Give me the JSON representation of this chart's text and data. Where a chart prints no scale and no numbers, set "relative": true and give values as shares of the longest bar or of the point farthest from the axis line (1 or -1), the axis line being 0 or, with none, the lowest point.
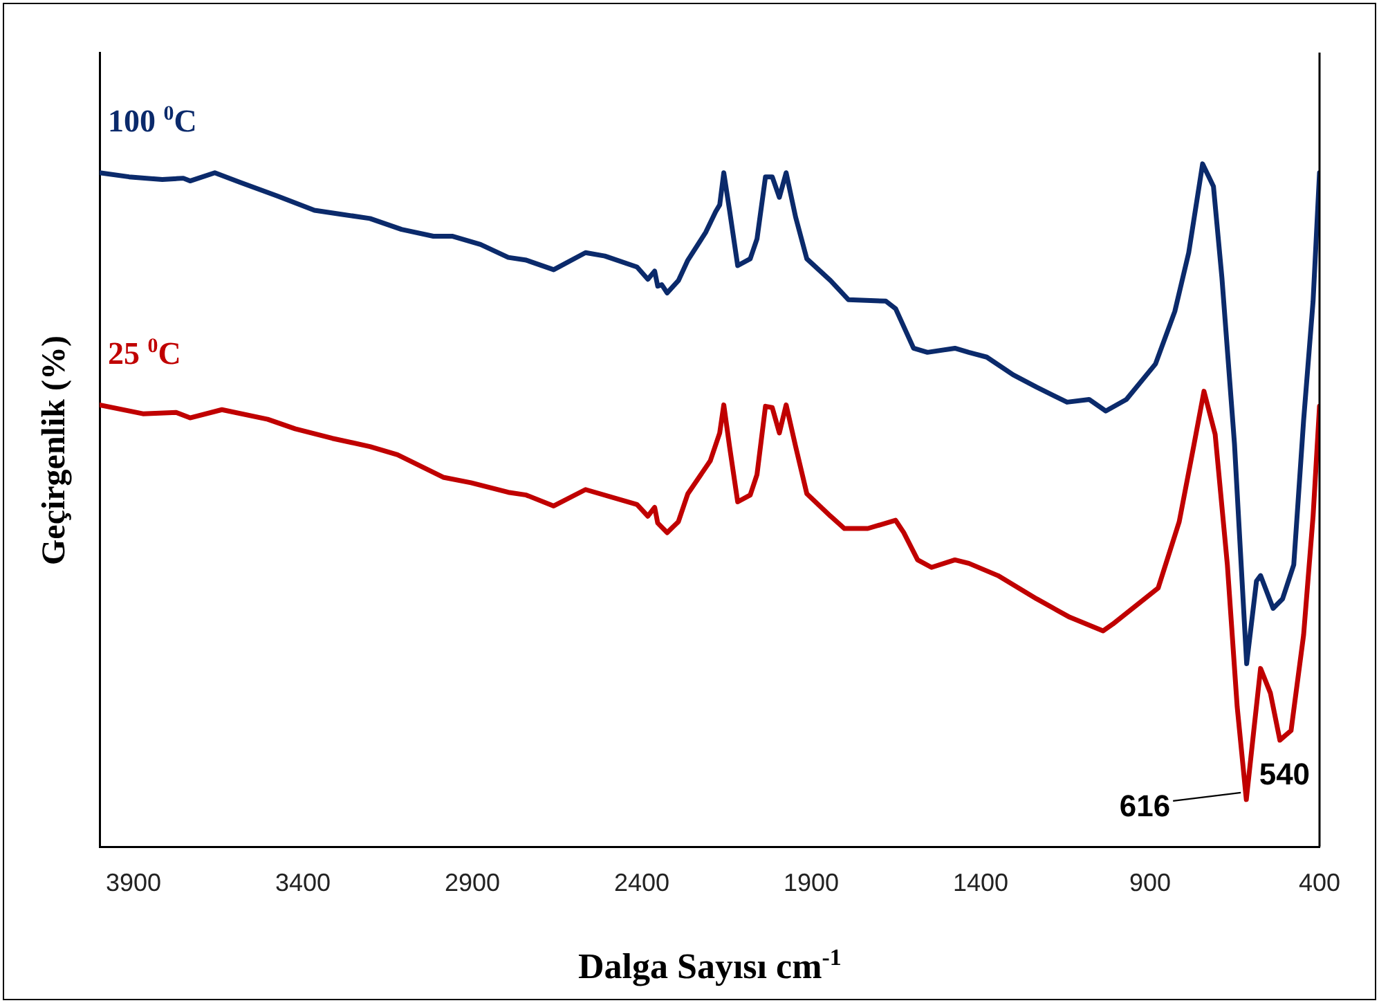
{
  "chart_data": {
    "type": "line",
    "relative": true,
    "xlabel": "Dalga Sayısı cm$^{-1}$",
    "ylabel": "Geçirgenlik (%)",
    "xlim": [
      4000,
      400
    ],
    "xticks": [
      3900,
      3400,
      2900,
      2400,
      1900,
      1400,
      900,
      400
    ],
    "grid": false,
    "legend": false,
    "marker": "none",
    "line_style": "solid",
    "series": [
      {
        "name": "100 $^{0}$C",
        "color": "#0b2a6b",
        "x": [
          4000,
          3913,
          3815,
          3753,
          3733,
          3660,
          3586,
          3476,
          3366,
          3284,
          3202,
          3109,
          3015,
          2958,
          2876,
          2794,
          2741,
          2660,
          2566,
          2509,
          2414,
          2382,
          2362,
          2353,
          2341,
          2325,
          2292,
          2264,
          2211,
          2182,
          2170,
          2158,
          2141,
          2117,
          2080,
          2060,
          2035,
          2015,
          1994,
          1974,
          1946,
          1913,
          1843,
          1790,
          1680,
          1651,
          1598,
          1557,
          1476,
          1435,
          1382,
          1304,
          1235,
          1145,
          1080,
          1031,
          970,
          884,
          827,
          786,
          745,
          713,
          688,
          651,
          615,
          586,
          574,
          537,
          509,
          476,
          447,
          419,
          400
        ],
        "values": [
          0.987,
          0.981,
          0.977,
          0.979,
          0.975,
          0.987,
          0.973,
          0.953,
          0.932,
          0.926,
          0.92,
          0.904,
          0.894,
          0.894,
          0.882,
          0.863,
          0.859,
          0.845,
          0.87,
          0.865,
          0.849,
          0.831,
          0.843,
          0.821,
          0.823,
          0.811,
          0.829,
          0.859,
          0.9,
          0.93,
          0.94,
          0.987,
          0.932,
          0.851,
          0.861,
          0.89,
          0.981,
          0.981,
          0.951,
          0.987,
          0.922,
          0.861,
          0.829,
          0.801,
          0.799,
          0.788,
          0.73,
          0.724,
          0.73,
          0.724,
          0.717,
          0.691,
          0.673,
          0.651,
          0.655,
          0.638,
          0.655,
          0.707,
          0.784,
          0.87,
          1,
          0.967,
          0.833,
          0.59,
          0.268,
          0.389,
          0.397,
          0.349,
          0.363,
          0.413,
          0.624,
          0.799,
          0.987
        ]
      },
      {
        "name": "25 $^{0}$C",
        "color": "#c00000",
        "x": [
          4000,
          3872,
          3774,
          3733,
          3639,
          3504,
          3423,
          3313,
          3202,
          3121,
          2986,
          2904,
          2794,
          2741,
          2660,
          2566,
          2414,
          2382,
          2362,
          2353,
          2325,
          2292,
          2264,
          2198,
          2170,
          2158,
          2141,
          2117,
          2080,
          2060,
          2035,
          2015,
          1994,
          1974,
          1946,
          1913,
          1843,
          1802,
          1733,
          1651,
          1627,
          1586,
          1545,
          1476,
          1435,
          1349,
          1235,
          1137,
          1039,
          1010,
          876,
          814,
          770,
          741,
          708,
          672,
          643,
          616,
          594,
          574,
          545,
          517,
          484,
          447,
          419,
          400
        ],
        "values": [
          0.647,
          0.634,
          0.636,
          0.628,
          0.64,
          0.626,
          0.612,
          0.598,
          0.586,
          0.574,
          0.541,
          0.533,
          0.519,
          0.515,
          0.499,
          0.523,
          0.501,
          0.484,
          0.497,
          0.474,
          0.46,
          0.476,
          0.517,
          0.565,
          0.606,
          0.647,
          0.586,
          0.505,
          0.515,
          0.545,
          0.645,
          0.643,
          0.606,
          0.647,
          0.586,
          0.517,
          0.484,
          0.466,
          0.466,
          0.478,
          0.46,
          0.42,
          0.409,
          0.42,
          0.415,
          0.397,
          0.363,
          0.336,
          0.316,
          0.326,
          0.379,
          0.476,
          0.59,
          0.667,
          0.604,
          0.413,
          0.205,
          0.069,
          0.17,
          0.261,
          0.225,
          0.156,
          0.17,
          0.31,
          0.484,
          0.645
        ]
      }
    ],
    "annotations": [
      {
        "text": "616",
        "x": 616,
        "y": 0.069
      },
      {
        "text": "540",
        "x": 540,
        "y": 0.225
      }
    ]
  }
}
